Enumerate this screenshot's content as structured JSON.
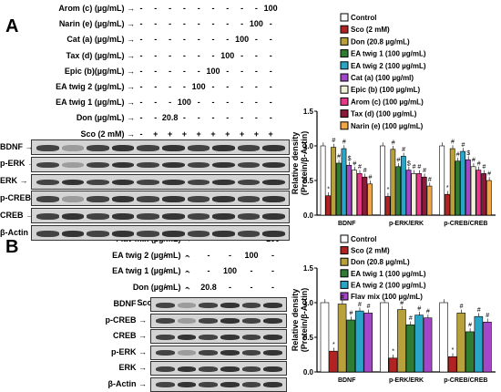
{
  "panels": [
    {
      "label": "A",
      "treatments": [
        {
          "name": "Arom (c) (µg/mL)",
          "values": [
            "-",
            "-",
            "-",
            "-",
            "-",
            "-",
            "-",
            "-",
            "-",
            "100"
          ]
        },
        {
          "name": "Narin (e) (µg/mL)",
          "values": [
            "-",
            "-",
            "-",
            "-",
            "-",
            "-",
            "-",
            "-",
            "100",
            "-"
          ]
        },
        {
          "name": "Cat (a) (µg/mL)",
          "values": [
            "-",
            "-",
            "-",
            "-",
            "-",
            "-",
            "-",
            "100",
            "-",
            "-"
          ]
        },
        {
          "name": "Tax (d) (µg/mL)",
          "values": [
            "-",
            "-",
            "-",
            "-",
            "-",
            "-",
            "100",
            "-",
            "-",
            "-"
          ]
        },
        {
          "name": "Epic (b)(µg/mL)",
          "values": [
            "-",
            "-",
            "-",
            "-",
            "-",
            "100",
            "-",
            "-",
            "-",
            "-"
          ]
        },
        {
          "name": "EA twig 2 (µg/mL)",
          "values": [
            "-",
            "-",
            "-",
            "-",
            "100",
            "-",
            "-",
            "-",
            "-",
            "-"
          ]
        },
        {
          "name": "EA twig 1 (µg/mL)",
          "values": [
            "-",
            "-",
            "-",
            "100",
            "-",
            "-",
            "-",
            "-",
            "-",
            "-"
          ]
        },
        {
          "name": "Don (µg/mL)",
          "values": [
            "-",
            "-",
            "20.8",
            "-",
            "-",
            "-",
            "-",
            "-",
            "-",
            "-"
          ]
        },
        {
          "name": "Sco (2 mM)",
          "values": [
            "-",
            "+",
            "+",
            "+",
            "+",
            "+",
            "+",
            "+",
            "+",
            "+"
          ]
        }
      ],
      "blots": [
        "BDNF",
        "p-ERK",
        "ERK",
        "p-CREB",
        "CREB",
        "β-Actin"
      ],
      "legend": [
        {
          "label": "Control",
          "color": "#ffffff"
        },
        {
          "label": "Sco (2 mM)",
          "color": "#b22222"
        },
        {
          "label": "Don (20.8 µg/mL)",
          "color": "#b8a13a"
        },
        {
          "label": "EA twig 1 (100 µg/mL)",
          "color": "#2f7d32"
        },
        {
          "label": "EA twig 2 (100 µg/mL)",
          "color": "#29a5c8"
        },
        {
          "label": "Cat (a) (100 µg/ml)",
          "color": "#a347c8"
        },
        {
          "label": "Epic (b) (100 µg/mL)",
          "color": "#f2f2d8"
        },
        {
          "label": "Arom (c) (100 µg/mL)",
          "color": "#e8388a"
        },
        {
          "label": "Tax (d) (100 µg/mL)",
          "color": "#8b1a3a"
        },
        {
          "label": "Narin (e) (100 µg/mL)",
          "color": "#f3a645"
        }
      ],
      "chart_data": {
        "type": "bar",
        "ylabel": "Relative density\n(Protein/β-Actin)",
        "ylim": [
          0,
          1.5
        ],
        "yticks": [
          "0.0",
          "0.5",
          "1.0",
          "1.5"
        ],
        "categories": [
          "BDNF",
          "p-ERK/ERK",
          "p-CREB/CREB"
        ],
        "series": [
          {
            "name": "Control",
            "values": [
              1.0,
              1.0,
              1.0
            ]
          },
          {
            "name": "Sco (2 mM)",
            "values": [
              0.28,
              0.27,
              0.3
            ]
          },
          {
            "name": "Don (20.8 µg/mL)",
            "values": [
              0.98,
              0.95,
              0.96
            ]
          },
          {
            "name": "EA twig 1 (100 µg/mL)",
            "values": [
              0.75,
              0.7,
              0.78
            ]
          },
          {
            "name": "EA twig 2 (100 µg/mL)",
            "values": [
              0.96,
              0.85,
              0.92
            ]
          },
          {
            "name": "Cat (a) (100 µg/ml)",
            "values": [
              0.72,
              0.65,
              0.8
            ]
          },
          {
            "name": "Epic (b) (100 µg/mL)",
            "values": [
              0.65,
              0.6,
              0.7
            ]
          },
          {
            "name": "Arom (c) (100 µg/mL)",
            "values": [
              0.6,
              0.6,
              0.65
            ]
          },
          {
            "name": "Tax (d) (100 µg/mL)",
            "values": [
              0.55,
              0.55,
              0.6
            ]
          },
          {
            "name": "Narin (e) (100 µg/mL)",
            "values": [
              0.45,
              0.42,
              0.5
            ]
          }
        ],
        "annotations": [
          [
            "",
            "*",
            "#",
            "#",
            "#",
            "$",
            "#",
            "#",
            "#",
            "#"
          ],
          [
            "",
            "*",
            "#",
            "#",
            "#",
            "$",
            "#",
            "#",
            "#",
            "#"
          ],
          [
            "",
            "*",
            "#",
            "#",
            "#",
            "$",
            "#",
            "#",
            "#",
            "#"
          ]
        ]
      }
    },
    {
      "label": "B",
      "treatments": [
        {
          "name": "Flav mix (µg/mL)",
          "values": [
            "-",
            "-",
            "-",
            "-",
            "-",
            "100"
          ]
        },
        {
          "name": "EA twig 2 (µg/mL)",
          "values": [
            "-",
            "-",
            "-",
            "-",
            "100",
            "-"
          ]
        },
        {
          "name": "EA twig 1 (µg/mL)",
          "values": [
            "-",
            "-",
            "-",
            "100",
            "-",
            "-"
          ]
        },
        {
          "name": "Don (µg/mL)",
          "values": [
            "-",
            "-",
            "20.8",
            "-",
            "-",
            "-"
          ]
        },
        {
          "name": "Sco (2 mM)",
          "values": [
            "-",
            "+",
            "+",
            "+",
            "+",
            "+"
          ]
        }
      ],
      "blots": [
        "BDNF",
        "p-CREB",
        "CREB",
        "p-ERK",
        "ERK",
        "β-Actin"
      ],
      "legend": [
        {
          "label": "Control",
          "color": "#ffffff"
        },
        {
          "label": "Sco (2 mM)",
          "color": "#b22222"
        },
        {
          "label": "Don (20.8 µg/mL)",
          "color": "#b8a13a"
        },
        {
          "label": "EA twig 1 (100 µg/mL)",
          "color": "#2f7d32"
        },
        {
          "label": "EA twig 2 (100 µg/mL)",
          "color": "#29a5c8"
        },
        {
          "label": "Flav mix (100 µg/mL)",
          "color": "#a347c8"
        }
      ],
      "chart_data": {
        "type": "bar",
        "ylabel": "Relative density\n(Protein/β-Actin)",
        "ylim": [
          0,
          1.5
        ],
        "yticks": [
          "0.0",
          "0.5",
          "1.0",
          "1.5"
        ],
        "categories": [
          "BDNF",
          "p-ERK/ERK",
          "p-CREB/CREB"
        ],
        "series": [
          {
            "name": "Control",
            "values": [
              1.0,
              1.0,
              1.0
            ]
          },
          {
            "name": "Sco (2 mM)",
            "values": [
              0.3,
              0.2,
              0.22
            ]
          },
          {
            "name": "Don (20.8 µg/mL)",
            "values": [
              0.98,
              0.9,
              0.85
            ]
          },
          {
            "name": "EA twig 1 (100 µg/mL)",
            "values": [
              0.75,
              0.68,
              0.58
            ]
          },
          {
            "name": "EA twig 2 (100 µg/mL)",
            "values": [
              0.88,
              0.82,
              0.8
            ]
          },
          {
            "name": "Flav mix (100 µg/mL)",
            "values": [
              0.85,
              0.78,
              0.72
            ]
          }
        ],
        "annotations": [
          [
            "",
            "*",
            "#",
            "#",
            "#",
            "#"
          ],
          [
            "",
            "*",
            "#",
            "#",
            "#",
            "#"
          ],
          [
            "",
            "*",
            "#",
            "#",
            "#",
            "#"
          ]
        ]
      }
    }
  ]
}
